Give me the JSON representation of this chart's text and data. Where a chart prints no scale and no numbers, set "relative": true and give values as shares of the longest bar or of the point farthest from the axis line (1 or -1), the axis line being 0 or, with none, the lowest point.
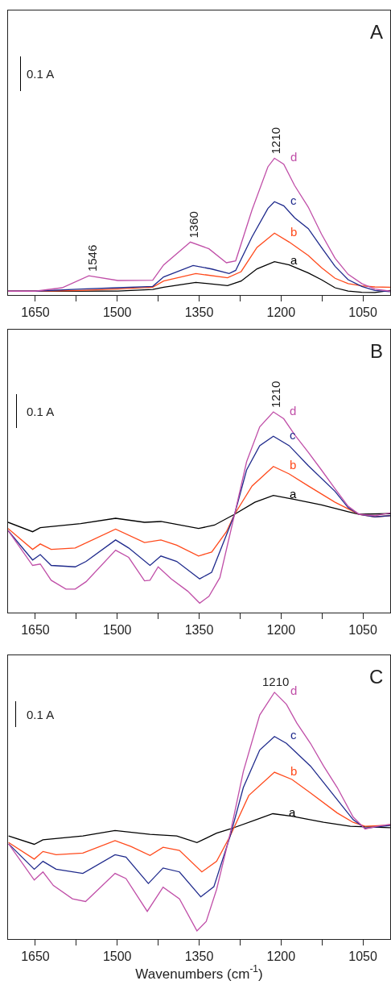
{
  "chart_data": [
    {
      "type": "line",
      "title": "A",
      "relative": true,
      "tick_labels": "x",
      "xlim": [
        1700,
        1000
      ],
      "xticks": [
        1650,
        {
          "value": 1575,
          "label": null
        },
        1500,
        {
          "value": 1425,
          "label": null
        },
        1350,
        {
          "value": 1275,
          "label": null
        },
        1200,
        {
          "value": 1125,
          "label": null
        },
        1050
      ],
      "annotations": [
        "0.1 A",
        {
          "text": "1546",
          "x": 1546,
          "y": 0.141
        },
        {
          "text": "1360",
          "x": 1360,
          "y": 0.387
        },
        {
          "text": "1210",
          "x": 1210,
          "y": 1.0
        }
      ],
      "series": [
        {
          "name": "a",
          "color": "#000000",
          "x": [
            1700,
            1650,
            1499,
            1435,
            1415,
            1356,
            1298,
            1273,
            1244,
            1212,
            1185,
            1150,
            1126,
            1101,
            1077,
            1052,
            1028,
            1000
          ],
          "values": [
            0.028,
            0.028,
            0.029,
            0.041,
            0.057,
            0.092,
            0.069,
            0.102,
            0.191,
            0.244,
            0.22,
            0.161,
            0.112,
            0.053,
            0.029,
            0.02,
            0.018,
            0.033
          ]
        },
        {
          "name": "b",
          "color": "#ff4a1c",
          "x": [
            1700,
            1650,
            1567,
            1499,
            1435,
            1415,
            1356,
            1298,
            1273,
            1244,
            1212,
            1185,
            1150,
            1126,
            1101,
            1077,
            1052,
            1028,
            1000
          ],
          "values": [
            0.028,
            0.028,
            0.033,
            0.043,
            0.057,
            0.102,
            0.157,
            0.126,
            0.171,
            0.348,
            0.452,
            0.387,
            0.289,
            0.2,
            0.122,
            0.083,
            0.067,
            0.059,
            0.057
          ]
        },
        {
          "name": "c",
          "color": "#1f2a8c",
          "x": [
            1700,
            1650,
            1567,
            1499,
            1435,
            1415,
            1361,
            1327,
            1295,
            1283,
            1253,
            1224,
            1212,
            1195,
            1175,
            1150,
            1126,
            1101,
            1077,
            1052,
            1028,
            1000
          ],
          "values": [
            0.028,
            0.028,
            0.043,
            0.053,
            0.063,
            0.132,
            0.216,
            0.19,
            0.157,
            0.18,
            0.426,
            0.633,
            0.682,
            0.652,
            0.564,
            0.485,
            0.348,
            0.21,
            0.112,
            0.063,
            0.033,
            0.024
          ]
        },
        {
          "name": "d",
          "color": "#c04fa8",
          "x": [
            1700,
            1650,
            1601,
            1552,
            1499,
            1435,
            1415,
            1366,
            1332,
            1300,
            1283,
            1253,
            1224,
            1212,
            1195,
            1175,
            1150,
            1126,
            1101,
            1077,
            1052,
            1028,
            1000
          ],
          "values": [
            0.028,
            0.028,
            0.053,
            0.141,
            0.106,
            0.108,
            0.22,
            0.387,
            0.338,
            0.236,
            0.25,
            0.623,
            0.937,
            1.0,
            0.957,
            0.8,
            0.642,
            0.446,
            0.269,
            0.151,
            0.083,
            0.043,
            0.028
          ]
        }
      ]
    },
    {
      "type": "line",
      "title": "B",
      "relative": true,
      "tick_labels": "x",
      "xlim": [
        1700,
        1000
      ],
      "xticks": [
        1650,
        {
          "value": 1575,
          "label": null
        },
        1500,
        {
          "value": 1425,
          "label": null
        },
        1350,
        {
          "value": 1275,
          "label": null
        },
        1200,
        {
          "value": 1125,
          "label": null
        },
        1050
      ],
      "annotations": [
        "0.1 A",
        {
          "text": "1210",
          "x": 1210,
          "y": 1.0
        }
      ],
      "series": [
        {
          "name": "a",
          "color": "#000000",
          "x": [
            1700,
            1655,
            1641,
            1567,
            1503,
            1450,
            1420,
            1351,
            1322,
            1285,
            1248,
            1214,
            1175,
            1126,
            1077,
            1057,
            1000
          ],
          "values": [
            0.45,
            0.403,
            0.423,
            0.443,
            0.47,
            0.45,
            0.454,
            0.419,
            0.436,
            0.49,
            0.55,
            0.584,
            0.564,
            0.537,
            0.503,
            0.49,
            0.493
          ]
        },
        {
          "name": "b",
          "color": "#ff4a1c",
          "x": [
            1700,
            1655,
            1641,
            1621,
            1577,
            1503,
            1450,
            1420,
            1391,
            1351,
            1327,
            1300,
            1285,
            1253,
            1214,
            1185,
            1150,
            1101,
            1057,
            1028,
            1000
          ],
          "values": [
            0.419,
            0.315,
            0.342,
            0.315,
            0.322,
            0.416,
            0.349,
            0.362,
            0.336,
            0.282,
            0.302,
            0.403,
            0.49,
            0.631,
            0.728,
            0.691,
            0.631,
            0.55,
            0.49,
            0.477,
            0.483
          ]
        },
        {
          "name": "c",
          "color": "#1f2a8c",
          "x": [
            1700,
            1655,
            1641,
            1621,
            1577,
            1557,
            1503,
            1479,
            1440,
            1420,
            1391,
            1349,
            1327,
            1285,
            1263,
            1239,
            1214,
            1185,
            1150,
            1101,
            1077,
            1057,
            1028,
            1000
          ],
          "values": [
            0.409,
            0.262,
            0.289,
            0.235,
            0.228,
            0.255,
            0.362,
            0.322,
            0.235,
            0.282,
            0.255,
            0.168,
            0.201,
            0.49,
            0.711,
            0.832,
            0.879,
            0.832,
            0.732,
            0.604,
            0.523,
            0.49,
            0.477,
            0.483
          ]
        },
        {
          "name": "d",
          "color": "#c04fa8",
          "x": [
            1700,
            1655,
            1641,
            1621,
            1594,
            1577,
            1557,
            1503,
            1479,
            1450,
            1440,
            1425,
            1401,
            1371,
            1349,
            1332,
            1312,
            1285,
            1263,
            1239,
            1214,
            1195,
            1175,
            1150,
            1126,
            1101,
            1077,
            1057,
            1028,
            1000
          ],
          "values": [
            0.409,
            0.235,
            0.242,
            0.161,
            0.117,
            0.117,
            0.154,
            0.311,
            0.275,
            0.158,
            0.161,
            0.228,
            0.168,
            0.107,
            0.047,
            0.081,
            0.174,
            0.49,
            0.752,
            0.926,
            1.0,
            0.966,
            0.886,
            0.799,
            0.711,
            0.617,
            0.53,
            0.49,
            0.483,
            0.497
          ]
        }
      ]
    },
    {
      "type": "line",
      "title": "C",
      "xlabel": "Wavenumbers (cm$^{-1}$)",
      "relative": true,
      "tick_labels": "x",
      "xlim": [
        1700,
        1000
      ],
      "xticks": [
        1650,
        {
          "value": 1575,
          "label": null
        },
        1500,
        {
          "value": 1425,
          "label": null
        },
        1350,
        {
          "value": 1275,
          "label": null
        },
        1200,
        {
          "value": 1125,
          "label": null
        },
        1050
      ],
      "annotations": [
        "0.1 A",
        {
          "text": "1210",
          "x": 1210,
          "y": 1.0
        }
      ],
      "series": [
        {
          "name": "a",
          "color": "#000000",
          "x": [
            1699,
            1652,
            1636,
            1563,
            1504,
            1440,
            1391,
            1354,
            1318,
            1293,
            1215,
            1180,
            1122,
            1073,
            1000
          ],
          "values": [
            0.418,
            0.384,
            0.402,
            0.418,
            0.44,
            0.424,
            0.418,
            0.391,
            0.429,
            0.446,
            0.508,
            0.498,
            0.473,
            0.457,
            0.451
          ]
        },
        {
          "name": "b",
          "color": "#ff4a1c",
          "x": [
            1699,
            1652,
            1636,
            1612,
            1563,
            1504,
            1475,
            1440,
            1416,
            1386,
            1345,
            1318,
            1293,
            1259,
            1212,
            1180,
            1146,
            1097,
            1068,
            1046,
            1000
          ],
          "values": [
            0.391,
            0.324,
            0.355,
            0.342,
            0.348,
            0.399,
            0.375,
            0.339,
            0.372,
            0.359,
            0.272,
            0.315,
            0.418,
            0.582,
            0.676,
            0.647,
            0.592,
            0.511,
            0.473,
            0.457,
            0.462
          ]
        },
        {
          "name": "c",
          "color": "#1f2a8c",
          "x": [
            1699,
            1652,
            1636,
            1612,
            1563,
            1504,
            1484,
            1443,
            1416,
            1386,
            1347,
            1323,
            1293,
            1269,
            1239,
            1212,
            1190,
            1146,
            1097,
            1068,
            1046,
            1000
          ],
          "values": [
            0.386,
            0.283,
            0.315,
            0.283,
            0.266,
            0.342,
            0.332,
            0.225,
            0.288,
            0.272,
            0.171,
            0.212,
            0.418,
            0.614,
            0.766,
            0.821,
            0.793,
            0.701,
            0.565,
            0.484,
            0.449,
            0.46
          ]
        },
        {
          "name": "d",
          "color": "#c04fa8",
          "x": [
            1699,
            1652,
            1636,
            1617,
            1582,
            1558,
            1504,
            1484,
            1445,
            1416,
            1386,
            1354,
            1337,
            1318,
            1293,
            1269,
            1239,
            1212,
            1190,
            1171,
            1146,
            1122,
            1097,
            1068,
            1046,
            1024,
            1000
          ],
          "values": [
            0.386,
            0.239,
            0.272,
            0.217,
            0.163,
            0.152,
            0.266,
            0.245,
            0.112,
            0.21,
            0.163,
            0.033,
            0.071,
            0.201,
            0.429,
            0.679,
            0.908,
            1.0,
            0.951,
            0.875,
            0.793,
            0.701,
            0.614,
            0.495,
            0.446,
            0.457,
            0.465
          ]
        }
      ]
    }
  ]
}
